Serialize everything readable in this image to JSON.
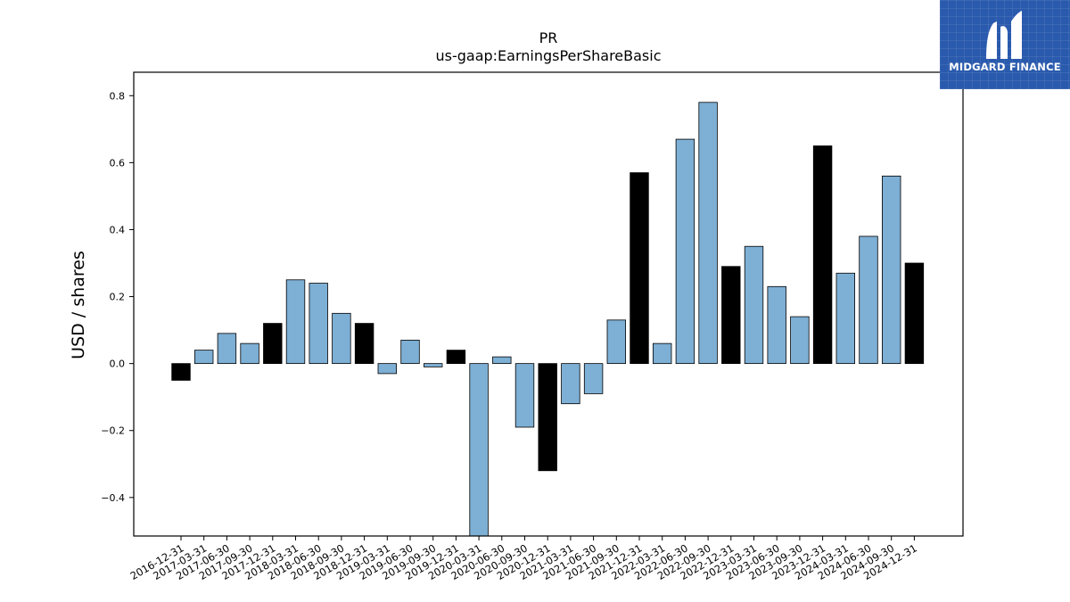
{
  "chart_data": {
    "type": "bar",
    "title": "PR",
    "subtitle": "us-gaap:EarningsPerShareBasic",
    "xlabel": "",
    "ylabel": "USD / shares",
    "ylim": [
      -0.515,
      0.87
    ],
    "yticks": [
      -0.4,
      -0.2,
      0.0,
      0.2,
      0.4,
      0.6,
      0.8
    ],
    "ytick_labels": [
      "−0.4",
      "−0.2",
      "0.0",
      "0.2",
      "0.4",
      "0.6",
      "0.8"
    ],
    "grid": false,
    "categories": [
      "2016-12-31",
      "2017-03-31",
      "2017-06-30",
      "2017-09-30",
      "2017-12-31",
      "2018-03-31",
      "2018-06-30",
      "2018-09-30",
      "2018-12-31",
      "2019-03-31",
      "2019-06-30",
      "2019-09-30",
      "2019-12-31",
      "2020-03-31",
      "2020-06-30",
      "2020-09-30",
      "2020-12-31",
      "2021-03-31",
      "2021-06-30",
      "2021-09-30",
      "2021-12-31",
      "2022-03-31",
      "2022-06-30",
      "2022-09-30",
      "2022-12-31",
      "2023-03-31",
      "2023-06-30",
      "2023-09-30",
      "2023-12-31",
      "2024-03-31",
      "2024-06-30",
      "2024-09-30",
      "2024-12-31"
    ],
    "values": [
      -0.05,
      0.04,
      0.09,
      0.06,
      0.12,
      0.25,
      0.24,
      0.15,
      0.12,
      -0.03,
      0.07,
      -0.01,
      0.04,
      -0.55,
      0.02,
      -0.19,
      -0.32,
      -0.12,
      -0.09,
      0.13,
      0.57,
      0.06,
      0.67,
      0.78,
      0.29,
      0.35,
      0.23,
      0.14,
      0.65,
      0.27,
      0.38,
      0.56,
      0.3
    ],
    "annual": [
      true,
      false,
      false,
      false,
      true,
      false,
      false,
      false,
      true,
      false,
      false,
      false,
      true,
      false,
      false,
      false,
      true,
      false,
      false,
      false,
      true,
      false,
      false,
      false,
      true,
      false,
      false,
      false,
      true,
      false,
      false,
      false,
      true
    ],
    "colors": {
      "quarter": "#7eafd4",
      "annual": "#000000",
      "edge": "#000000"
    }
  },
  "logo": {
    "text": "MIDGARD FINANCE",
    "background": "#2a5aad"
  }
}
